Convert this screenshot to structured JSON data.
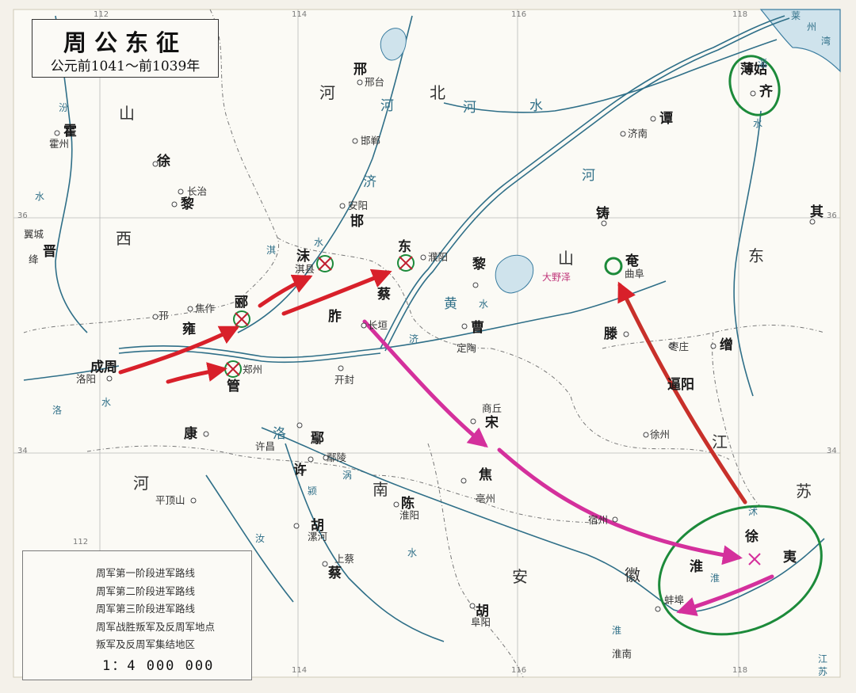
{
  "title": {
    "main": "周公东征",
    "subtitle": "公元前1041～前1039年"
  },
  "coords": {
    "top": [
      "112",
      "114",
      "116",
      "118"
    ],
    "bottom": [
      "112",
      "114",
      "116",
      "118"
    ],
    "left": [
      "36",
      "34"
    ],
    "right": [
      "36",
      "34"
    ]
  },
  "regions": [
    "山",
    "西",
    "河",
    "北",
    "山",
    "东",
    "河",
    "南",
    "安",
    "徽",
    "江",
    "苏"
  ],
  "states": [
    "霍",
    "晋",
    "邢",
    "邯",
    "沫",
    "东",
    "郦",
    "成周",
    "管",
    "雍",
    "胙",
    "蔡",
    "黎",
    "曹",
    "奄",
    "谭",
    "薄姑",
    "齐",
    "其",
    "滕",
    "缯",
    "逼阳",
    "宋",
    "焦",
    "陈",
    "康",
    "鄢",
    "许",
    "胡",
    "蔡",
    "胡",
    "徐",
    "淮",
    "夷",
    "黎",
    "徐",
    "铸"
  ],
  "cities": [
    "霍州",
    "长治",
    "翼城",
    "邢台",
    "邯郸",
    "安阳",
    "淇县",
    "濮阳",
    "焦作",
    "洛阳",
    "郑州",
    "开封",
    "长垣",
    "定陶",
    "济南",
    "曲阜",
    "枣庄",
    "徐州",
    "商丘",
    "亳州",
    "宿州",
    "蚌埠",
    "淮南",
    "阜阳",
    "淮阳",
    "上蔡",
    "漯河",
    "鄢陵",
    "许昌",
    "平顶山",
    "邘",
    "绛"
  ],
  "rivers": [
    "黄",
    "河",
    "河",
    "水",
    "汾",
    "水",
    "洛",
    "水",
    "淇",
    "水",
    "济",
    "水",
    "河",
    "洛",
    "济",
    "淮",
    "汝",
    "颍",
    "涡",
    "淮",
    "水",
    "沭",
    "淄",
    "水",
    "莱",
    "州",
    "湾",
    "江",
    "苏"
  ],
  "lake": "大野泽",
  "legend": {
    "items": [
      "周军第一阶段进军路线",
      "周军第二阶段进军路线",
      "周军第三阶段进军路线",
      "周军战胜叛军及反周军地点",
      "叛军及反周军集结地区"
    ],
    "scale": "1：4 000 000",
    "colors": {
      "phase1": "#d8202a",
      "phase2": "#d4309c",
      "phase3": "#c8302a",
      "victory_mark": "#c02030",
      "rebel_area": "#1c8a3a"
    }
  }
}
